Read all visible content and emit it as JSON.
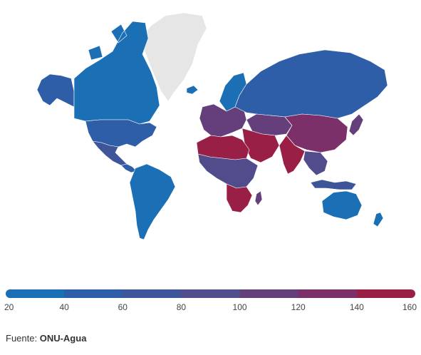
{
  "map": {
    "type": "choropleth",
    "no_data_color": "#e6e6e6",
    "ocean_color": "#ffffff",
    "regions": [
      {
        "name": "Greenland",
        "value": null
      },
      {
        "name": "Canada",
        "value": 30
      },
      {
        "name": "United States",
        "value": 55
      },
      {
        "name": "Alaska",
        "value": 50
      },
      {
        "name": "Mexico",
        "value": 65
      },
      {
        "name": "Central America",
        "value": 45
      },
      {
        "name": "South America",
        "value": 30
      },
      {
        "name": "Iceland",
        "value": 25
      },
      {
        "name": "Scandinavia",
        "value": 30
      },
      {
        "name": "Europe",
        "value": 105
      },
      {
        "name": "Russia",
        "value": 40
      },
      {
        "name": "Middle East",
        "value": 140
      },
      {
        "name": "Central Asia",
        "value": 110
      },
      {
        "name": "China",
        "value": 120
      },
      {
        "name": "India",
        "value": 145
      },
      {
        "name": "Southeast Asia",
        "value": 85
      },
      {
        "name": "Indonesia",
        "value": 70
      },
      {
        "name": "Japan",
        "value": 110
      },
      {
        "name": "North Africa",
        "value": 150
      },
      {
        "name": "Sub-Saharan Africa",
        "value": 95
      },
      {
        "name": "Southern Africa",
        "value": 140
      },
      {
        "name": "Madagascar",
        "value": 110
      },
      {
        "name": "Australia",
        "value": 30
      },
      {
        "name": "New Zealand",
        "value": 30
      }
    ]
  },
  "legend": {
    "colors": [
      "#1a6fb5",
      "#2e5ea8",
      "#3e5599",
      "#514c8c",
      "#653f7c",
      "#7c3069",
      "#9a1f47"
    ],
    "ticks": [
      "20",
      "40",
      "60",
      "80",
      "100",
      "120",
      "140",
      "160"
    ],
    "min": 20,
    "max": 160
  },
  "source": {
    "label": "Fuente:",
    "value": "ONU-Agua"
  }
}
